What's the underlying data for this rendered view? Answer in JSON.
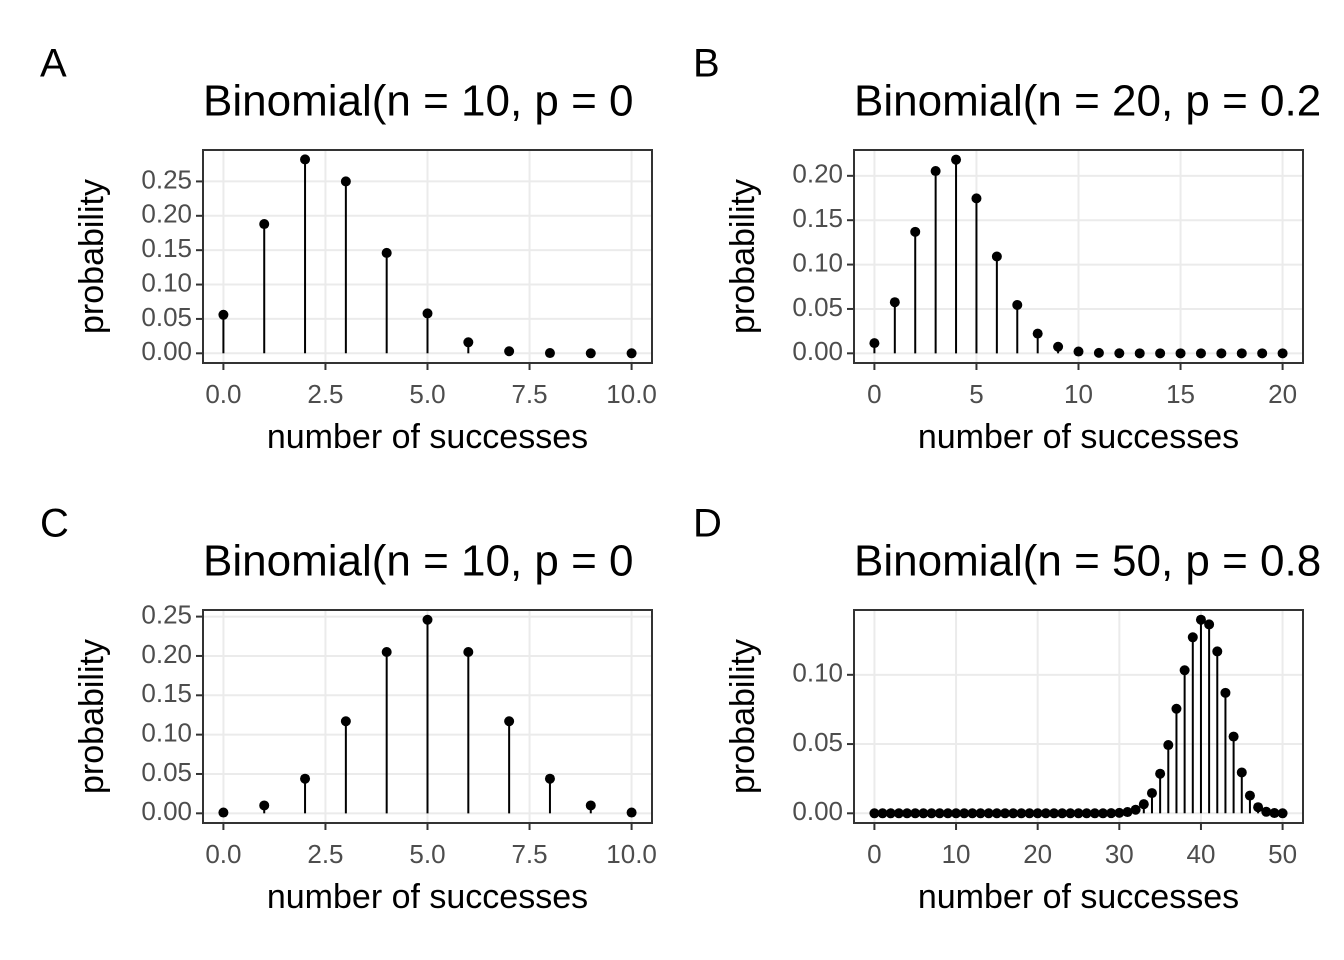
{
  "chart_data": [
    {
      "type": "lollipop",
      "tag": "A",
      "title": "Binomial(n = 10, p = 0",
      "xlabel": "number of successes",
      "ylabel": "probability",
      "color": "#000000",
      "grid": true,
      "x": [
        0,
        1,
        2,
        3,
        4,
        5,
        6,
        7,
        8,
        9,
        10
      ],
      "values": [
        0.056,
        0.188,
        0.282,
        0.25,
        0.146,
        0.058,
        0.016,
        0.003,
        0.0004,
        0.0,
        0.0
      ],
      "xlim": [
        -0.5,
        10.5
      ],
      "ylim": [
        -0.0141,
        0.2957
      ],
      "xticks": [
        {
          "value": 0,
          "label": "0.0"
        },
        2.5,
        {
          "value": 5,
          "label": "5.0"
        },
        7.5,
        {
          "value": 10,
          "label": "10.0"
        }
      ],
      "yticks": [
        {
          "value": 0,
          "label": "0.00"
        },
        0.05,
        {
          "value": 0.1,
          "label": "0.10"
        },
        0.15,
        {
          "value": 0.2,
          "label": "0.20"
        },
        0.25
      ]
    },
    {
      "type": "lollipop",
      "tag": "B",
      "title": "Binomial(n = 20, p = 0.2",
      "xlabel": "number of successes",
      "ylabel": "probability",
      "color": "#000000",
      "grid": true,
      "x": [
        0,
        1,
        2,
        3,
        4,
        5,
        6,
        7,
        8,
        9,
        10,
        11,
        12,
        13,
        14,
        15,
        16,
        17,
        18,
        19,
        20
      ],
      "values": [
        0.0115,
        0.0576,
        0.1369,
        0.2054,
        0.2182,
        0.1746,
        0.1091,
        0.0545,
        0.0222,
        0.0074,
        0.002,
        0.0005,
        0.0001,
        0,
        0,
        0,
        0,
        0,
        0,
        0,
        0
      ],
      "xlim": [
        -1,
        21
      ],
      "ylim": [
        -0.0109,
        0.2291
      ],
      "xticks": [
        0,
        5,
        10,
        15,
        20
      ],
      "yticks": [
        {
          "value": 0,
          "label": "0.00"
        },
        0.05,
        {
          "value": 0.1,
          "label": "0.10"
        },
        0.15,
        {
          "value": 0.2,
          "label": "0.20"
        }
      ]
    },
    {
      "type": "lollipop",
      "tag": "C",
      "title": "Binomial(n = 10, p = 0",
      "xlabel": "number of successes",
      "ylabel": "probability",
      "color": "#000000",
      "grid": true,
      "x": [
        0,
        1,
        2,
        3,
        4,
        5,
        6,
        7,
        8,
        9,
        10
      ],
      "values": [
        0.001,
        0.01,
        0.044,
        0.117,
        0.205,
        0.246,
        0.205,
        0.117,
        0.044,
        0.01,
        0.001
      ],
      "xlim": [
        -0.5,
        10.5
      ],
      "ylim": [
        -0.0123,
        0.2584
      ],
      "xticks": [
        {
          "value": 0,
          "label": "0.0"
        },
        2.5,
        {
          "value": 5,
          "label": "5.0"
        },
        7.5,
        {
          "value": 10,
          "label": "10.0"
        }
      ],
      "yticks": [
        {
          "value": 0,
          "label": "0.00"
        },
        0.05,
        {
          "value": 0.1,
          "label": "0.10"
        },
        0.15,
        {
          "value": 0.2,
          "label": "0.20"
        },
        0.25
      ]
    },
    {
      "type": "lollipop",
      "tag": "D",
      "title": "Binomial(n = 50, p = 0.8",
      "xlabel": "number of successes",
      "ylabel": "probability",
      "color": "#000000",
      "grid": true,
      "x": [
        0,
        1,
        2,
        3,
        4,
        5,
        6,
        7,
        8,
        9,
        10,
        11,
        12,
        13,
        14,
        15,
        16,
        17,
        18,
        19,
        20,
        21,
        22,
        23,
        24,
        25,
        26,
        27,
        28,
        29,
        30,
        31,
        32,
        33,
        34,
        35,
        36,
        37,
        38,
        39,
        40,
        41,
        42,
        43,
        44,
        45,
        46,
        47,
        48,
        49,
        50
      ],
      "values": [
        0,
        0,
        0,
        0,
        0,
        0,
        0,
        0,
        0,
        0,
        0,
        0,
        0,
        0,
        0,
        0,
        0,
        0,
        0,
        0,
        0,
        0,
        0,
        0,
        0,
        0,
        0,
        0,
        0,
        0.0001,
        0.0003,
        0.0009,
        0.0026,
        0.0066,
        0.0146,
        0.0286,
        0.0493,
        0.0755,
        0.1033,
        0.1271,
        0.1398,
        0.1364,
        0.1169,
        0.087,
        0.0554,
        0.0295,
        0.0128,
        0.0044,
        0.0011,
        0.0002,
        0.0
      ],
      "xlim": [
        -2.5,
        52.5
      ],
      "ylim": [
        -0.007,
        0.1468
      ],
      "xticks": [
        0,
        10,
        20,
        30,
        40,
        50
      ],
      "yticks": [
        {
          "value": 0,
          "label": "0.00"
        },
        0.05,
        {
          "value": 0.1,
          "label": "0.10"
        }
      ]
    }
  ]
}
